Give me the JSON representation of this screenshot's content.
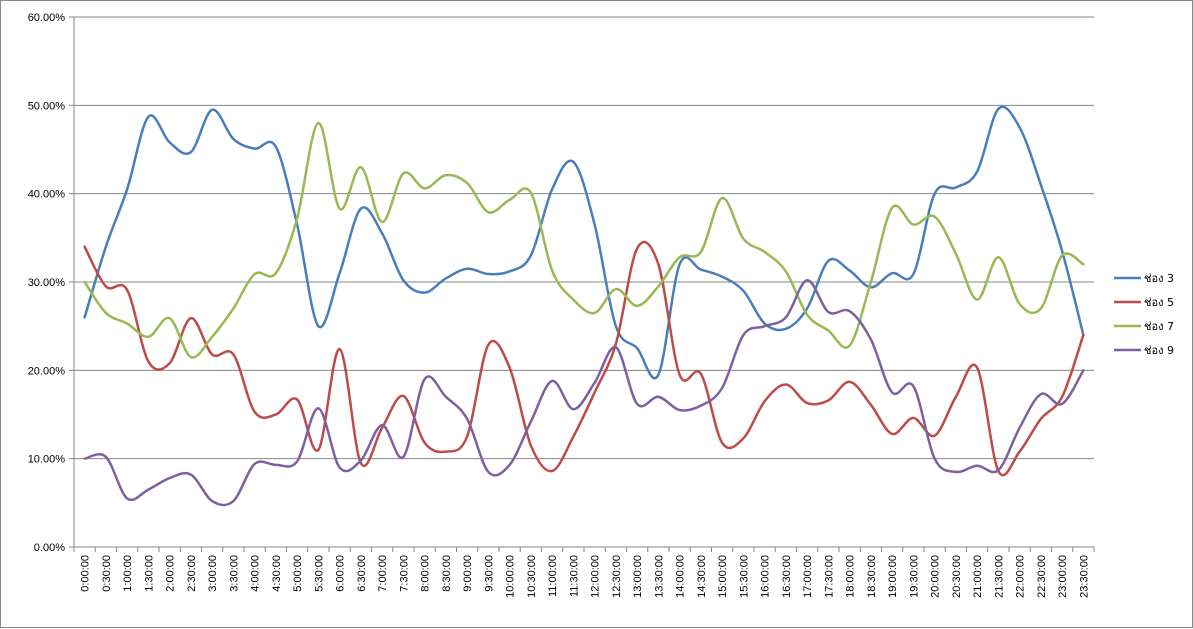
{
  "chart_data": {
    "type": "line",
    "title": "",
    "xlabel": "",
    "ylabel": "",
    "ylim": [
      0,
      60
    ],
    "y_ticks": [
      "0.00%",
      "10.00%",
      "20.00%",
      "30.00%",
      "40.00%",
      "50.00%",
      "60.00%"
    ],
    "grid": "horizontal",
    "legend_position": "right",
    "categories": [
      "0:00:00",
      "0:30:00",
      "1:00:00",
      "1:30:00",
      "2:00:00",
      "2:30:00",
      "3:00:00",
      "3:30:00",
      "4:00:00",
      "4:30:00",
      "5:00:00",
      "5:30:00",
      "6:00:00",
      "6:30:00",
      "7:00:00",
      "7:30:00",
      "8:00:00",
      "8:30:00",
      "9:00:00",
      "9:30:00",
      "10:00:00",
      "10:30:00",
      "11:00:00",
      "11:30:00",
      "12:00:00",
      "12:30:00",
      "13:00:00",
      "13:30:00",
      "14:00:00",
      "14:30:00",
      "15:00:00",
      "15:30:00",
      "16:00:00",
      "16:30:00",
      "17:00:00",
      "17:30:00",
      "18:00:00",
      "18:30:00",
      "19:00:00",
      "19:30:00",
      "20:00:00",
      "20:30:00",
      "21:00:00",
      "21:30:00",
      "22:00:00",
      "22:30:00",
      "23:00:00",
      "23:30:00"
    ],
    "series": [
      {
        "name": "ช่อง 3",
        "color": "#4A7EBB",
        "values": [
          26.0,
          34.0,
          40.5,
          48.7,
          45.8,
          44.7,
          49.5,
          46.2,
          45.1,
          45.3,
          36.5,
          25.0,
          31.0,
          38.3,
          35.5,
          30.2,
          28.8,
          30.4,
          31.5,
          30.9,
          31.2,
          33.0,
          40.5,
          43.6,
          36.5,
          25.0,
          22.5,
          19.5,
          32.0,
          31.4,
          30.6,
          29.0,
          25.3,
          24.7,
          27.0,
          32.4,
          31.3,
          29.4,
          31.0,
          30.9,
          40.0,
          40.7,
          42.5,
          49.6,
          47.5,
          41.0,
          33.5,
          24.0
        ]
      },
      {
        "name": "ช่อง 5",
        "color": "#BE4B48",
        "values": [
          34.0,
          29.5,
          29.1,
          21.0,
          20.8,
          25.9,
          21.8,
          21.8,
          15.3,
          15.0,
          16.7,
          11.0,
          22.4,
          9.5,
          13.5,
          17.1,
          11.8,
          10.8,
          12.5,
          22.9,
          20.3,
          11.5,
          8.6,
          12.5,
          17.5,
          23.0,
          33.8,
          32.0,
          19.5,
          19.6,
          11.8,
          12.3,
          16.5,
          18.4,
          16.3,
          16.6,
          18.7,
          16.1,
          12.8,
          14.6,
          12.6,
          17.0,
          20.3,
          8.6,
          10.8,
          14.5,
          17.0,
          24.0
        ]
      },
      {
        "name": "ช่อง 7",
        "color": "#98B954",
        "values": [
          30.0,
          26.5,
          25.3,
          23.8,
          25.9,
          21.5,
          23.8,
          27.0,
          30.9,
          31.0,
          37.2,
          48.0,
          38.3,
          43.0,
          36.8,
          42.3,
          40.6,
          42.1,
          41.2,
          37.9,
          39.3,
          40.1,
          31.3,
          28.0,
          26.5,
          29.2,
          27.3,
          29.5,
          32.8,
          33.4,
          39.5,
          34.9,
          33.4,
          31.2,
          26.3,
          24.5,
          22.8,
          30.0,
          38.4,
          36.5,
          37.4,
          33.2,
          28.0,
          32.8,
          27.5,
          27.0,
          33.0,
          32.0
        ]
      },
      {
        "name": "ช่อง 9",
        "color": "#7D60A0",
        "values": [
          10.0,
          10.2,
          5.5,
          6.5,
          7.8,
          8.2,
          5.2,
          5.2,
          9.4,
          9.3,
          9.7,
          15.7,
          9.0,
          9.8,
          13.8,
          10.2,
          19.0,
          17.0,
          14.5,
          8.5,
          9.3,
          14.2,
          18.8,
          15.6,
          18.6,
          22.6,
          16.2,
          17.0,
          15.5,
          16.0,
          18.0,
          24.0,
          25.0,
          26.0,
          30.2,
          26.6,
          26.7,
          23.5,
          17.5,
          18.2,
          10.0,
          8.5,
          9.2,
          8.7,
          13.5,
          17.3,
          16.2,
          20.0
        ]
      }
    ]
  }
}
